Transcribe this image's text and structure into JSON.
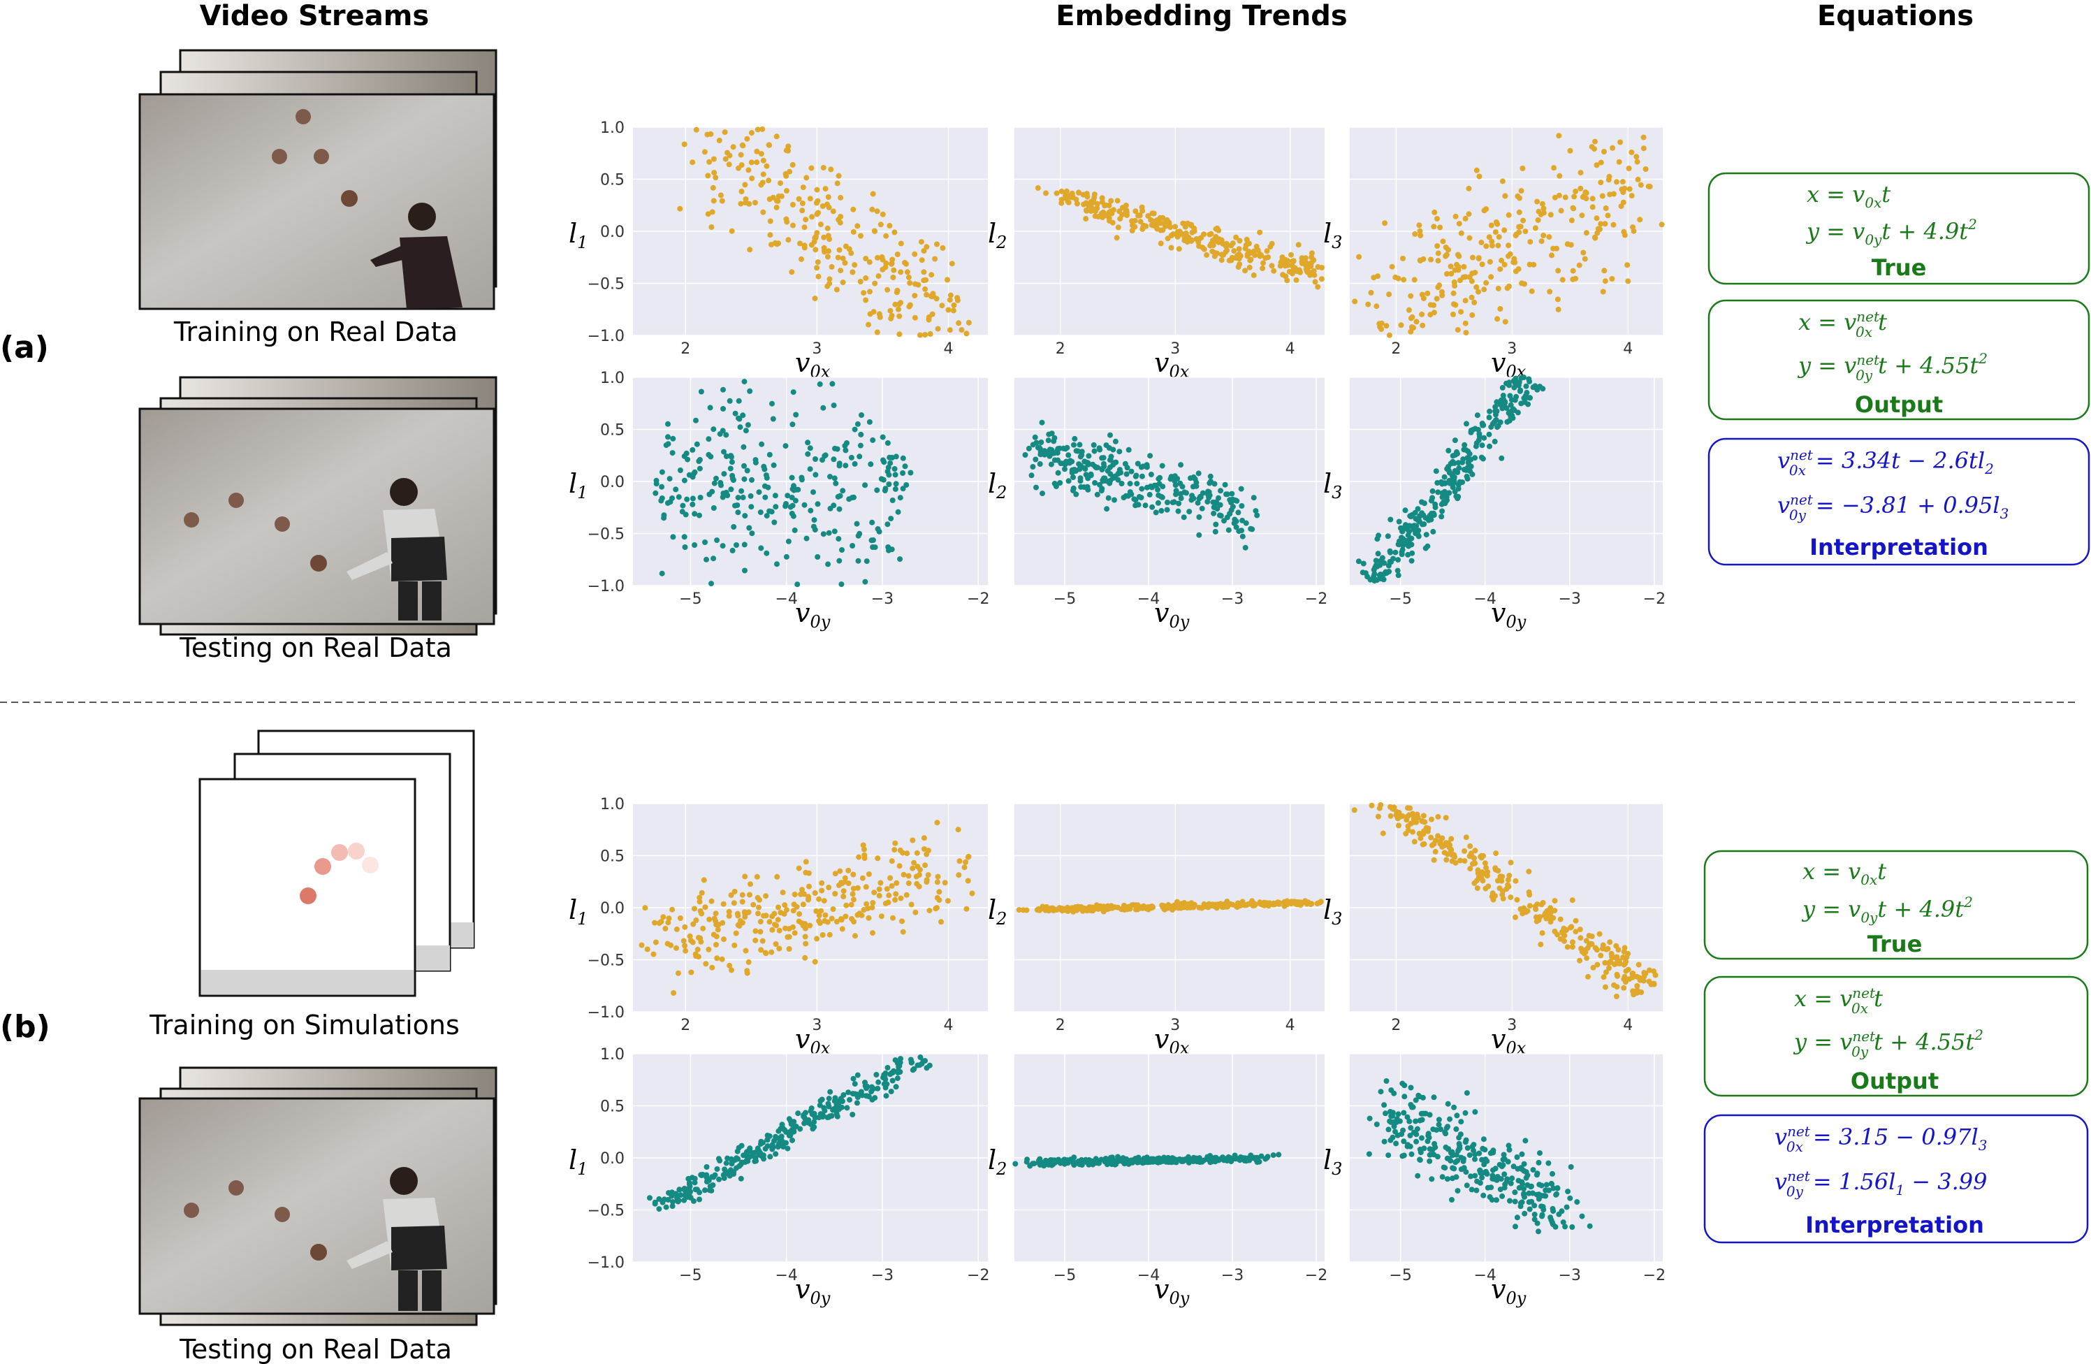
{
  "headers": {
    "video_streams": "Video Streams",
    "embedding_trends": "Embedding Trends",
    "equations": "Equations"
  },
  "rows": [
    {
      "label": "(a)",
      "caption_top": "Training on Real Data",
      "caption_bottom": "Testing on Real Data",
      "equation_boxes": [
        {
          "lines": [
            "x = v0x t",
            "y = v0y t + 4.9t²"
          ],
          "label": "True",
          "color": "#1a7a1a"
        },
        {
          "lines": [
            "x = v0x^net t",
            "y = v0y^net t + 4.55t²"
          ],
          "label": "Output",
          "color": "#1a7a1a"
        },
        {
          "lines": [
            "v0x^net = 3.34t − 2.6tl2",
            "v0y^net = −3.81 + 0.95l3"
          ],
          "label": "Interpretation",
          "color": "#1515c8"
        }
      ]
    },
    {
      "label": "(b)",
      "caption_top": "Training on Simulations",
      "caption_bottom": "Testing on Real Data",
      "equation_boxes": [
        {
          "lines": [
            "x = v0x t",
            "y = v0y t + 4.9t²"
          ],
          "label": "True",
          "color": "#1a7a1a"
        },
        {
          "lines": [
            "x = v0x^net t",
            "y = v0y^net t + 4.55t²"
          ],
          "label": "Output",
          "color": "#1a7a1a"
        },
        {
          "lines": [
            "v0x^net = 3.15 − 0.97l3",
            "v0y^net = 1.56l1 − 3.99"
          ],
          "label": "Interpretation",
          "color": "#1515c8"
        }
      ]
    }
  ],
  "colors": {
    "gold": "#dfa82a",
    "teal": "#148a82",
    "plot_bg": "#e8e9f2",
    "grid": "#ffffff"
  },
  "chart_data": [
    {
      "row": "a",
      "type": "scatter",
      "color": "#dfa82a",
      "xlabel": "v0x",
      "ylabel": "l1",
      "xlim": [
        1.6,
        4.3
      ],
      "ylim": [
        -1.0,
        1.0
      ],
      "xticks": [
        "2",
        "3",
        "4"
      ],
      "yticks": [
        "1.0",
        "0.5",
        "0.0",
        "−0.5",
        "−1.0"
      ],
      "trend": {
        "kind": "linear",
        "from": [
          2.1,
          1.0
        ],
        "to": [
          4.1,
          -1.0
        ],
        "spread": 0.32
      },
      "n": 300
    },
    {
      "row": "a",
      "type": "scatter",
      "color": "#dfa82a",
      "xlabel": "v0x",
      "ylabel": "l2",
      "xlim": [
        1.6,
        4.3
      ],
      "ylim": [
        -1.0,
        1.0
      ],
      "xticks": [
        "2",
        "3",
        "4"
      ],
      "yticks": [],
      "trend": {
        "kind": "linear",
        "from": [
          2.0,
          0.35
        ],
        "to": [
          4.2,
          -0.4
        ],
        "spread": 0.06
      },
      "n": 300
    },
    {
      "row": "a",
      "type": "scatter",
      "color": "#dfa82a",
      "xlabel": "v0x",
      "ylabel": "l3",
      "xlim": [
        1.6,
        4.3
      ],
      "ylim": [
        -1.0,
        1.0
      ],
      "xticks": [
        "2",
        "3",
        "4"
      ],
      "yticks": [],
      "trend": {
        "kind": "linear",
        "from": [
          1.8,
          -0.9
        ],
        "to": [
          4.1,
          0.5
        ],
        "spread": 0.38
      },
      "n": 300
    },
    {
      "row": "a",
      "type": "scatter",
      "color": "#148a82",
      "xlabel": "v0y",
      "ylabel": "l1",
      "xlim": [
        -5.6,
        -1.9
      ],
      "ylim": [
        -1.0,
        1.0
      ],
      "xticks": [
        "−5",
        "−4",
        "−3",
        "−2"
      ],
      "yticks": [
        "1.0",
        "0.5",
        "0.0",
        "−0.5",
        "−1.0"
      ],
      "trend": {
        "kind": "linear",
        "from": [
          -5.3,
          0.0
        ],
        "to": [
          -2.8,
          -0.2
        ],
        "spread": 0.45
      },
      "n": 300
    },
    {
      "row": "a",
      "type": "scatter",
      "color": "#148a82",
      "xlabel": "v0y",
      "ylabel": "l2",
      "xlim": [
        -5.6,
        -1.9
      ],
      "ylim": [
        -1.0,
        1.0
      ],
      "xticks": [
        "−5",
        "−4",
        "−3",
        "−2"
      ],
      "yticks": [],
      "trend": {
        "kind": "linear",
        "from": [
          -5.4,
          0.3
        ],
        "to": [
          -2.8,
          -0.3
        ],
        "spread": 0.14
      },
      "n": 300
    },
    {
      "row": "a",
      "type": "scatter",
      "color": "#148a82",
      "xlabel": "v0y",
      "ylabel": "l3",
      "xlim": [
        -5.6,
        -1.9
      ],
      "ylim": [
        -1.0,
        1.0
      ],
      "xticks": [
        "−5",
        "−4",
        "−3",
        "−2"
      ],
      "yticks": [],
      "trend": {
        "kind": "linear",
        "from": [
          -5.3,
          -0.95
        ],
        "to": [
          -3.5,
          1.0
        ],
        "spread": 0.05
      },
      "n": 300
    },
    {
      "row": "b",
      "type": "scatter",
      "color": "#dfa82a",
      "xlabel": "v0x",
      "ylabel": "l1",
      "xlim": [
        1.6,
        4.3
      ],
      "ylim": [
        -1.0,
        1.0
      ],
      "xticks": [
        "2",
        "3",
        "4"
      ],
      "yticks": [
        "1.0",
        "0.5",
        "0.0",
        "−0.5",
        "−1.0"
      ],
      "trend": {
        "kind": "linear",
        "from": [
          1.8,
          -0.35
        ],
        "to": [
          4.1,
          0.35
        ],
        "spread": 0.22
      },
      "n": 300
    },
    {
      "row": "b",
      "type": "scatter",
      "color": "#dfa82a",
      "xlabel": "v0x",
      "ylabel": "l2",
      "xlim": [
        1.6,
        4.3
      ],
      "ylim": [
        -1.0,
        1.0
      ],
      "xticks": [
        "2",
        "3",
        "4"
      ],
      "yticks": [],
      "trend": {
        "kind": "linear",
        "from": [
          1.8,
          -0.02
        ],
        "to": [
          4.2,
          0.05
        ],
        "spread": 0.012
      },
      "n": 300
    },
    {
      "row": "b",
      "type": "scatter",
      "color": "#dfa82a",
      "xlabel": "v0x",
      "ylabel": "l3",
      "xlim": [
        1.6,
        4.3
      ],
      "ylim": [
        -1.0,
        1.0
      ],
      "xticks": [
        "2",
        "3",
        "4"
      ],
      "yticks": [],
      "trend": {
        "kind": "linear",
        "from": [
          1.9,
          1.0
        ],
        "to": [
          4.2,
          -0.8
        ],
        "spread": 0.05
      },
      "n": 300
    },
    {
      "row": "b",
      "type": "scatter",
      "color": "#148a82",
      "xlabel": "v0y",
      "ylabel": "l1",
      "xlim": [
        -5.6,
        -1.9
      ],
      "ylim": [
        -1.0,
        1.0
      ],
      "xticks": [
        "−5",
        "−4",
        "−3",
        "−2"
      ],
      "yticks": [
        "1.0",
        "0.5",
        "0.0",
        "−0.5",
        "−1.0"
      ],
      "trend": {
        "kind": "linear",
        "from": [
          -5.4,
          -0.5
        ],
        "to": [
          -2.6,
          0.95
        ],
        "spread": 0.03
      },
      "n": 300
    },
    {
      "row": "b",
      "type": "scatter",
      "color": "#148a82",
      "xlabel": "v0y",
      "ylabel": "l2",
      "xlim": [
        -5.6,
        -1.9
      ],
      "ylim": [
        -1.0,
        1.0
      ],
      "xticks": [
        "−5",
        "−4",
        "−3",
        "−2"
      ],
      "yticks": [],
      "trend": {
        "kind": "linear",
        "from": [
          -5.4,
          -0.05
        ],
        "to": [
          -2.6,
          0.0
        ],
        "spread": 0.015
      },
      "n": 300
    },
    {
      "row": "b",
      "type": "scatter",
      "color": "#148a82",
      "xlabel": "v0y",
      "ylabel": "l3",
      "xlim": [
        -5.6,
        -1.9
      ],
      "ylim": [
        -1.0,
        1.0
      ],
      "xticks": [
        "−5",
        "−4",
        "−3",
        "−2"
      ],
      "yticks": [],
      "trend": {
        "kind": "linear",
        "from": [
          -5.2,
          0.45
        ],
        "to": [
          -3.0,
          -0.55
        ],
        "spread": 0.2
      },
      "n": 300
    }
  ]
}
